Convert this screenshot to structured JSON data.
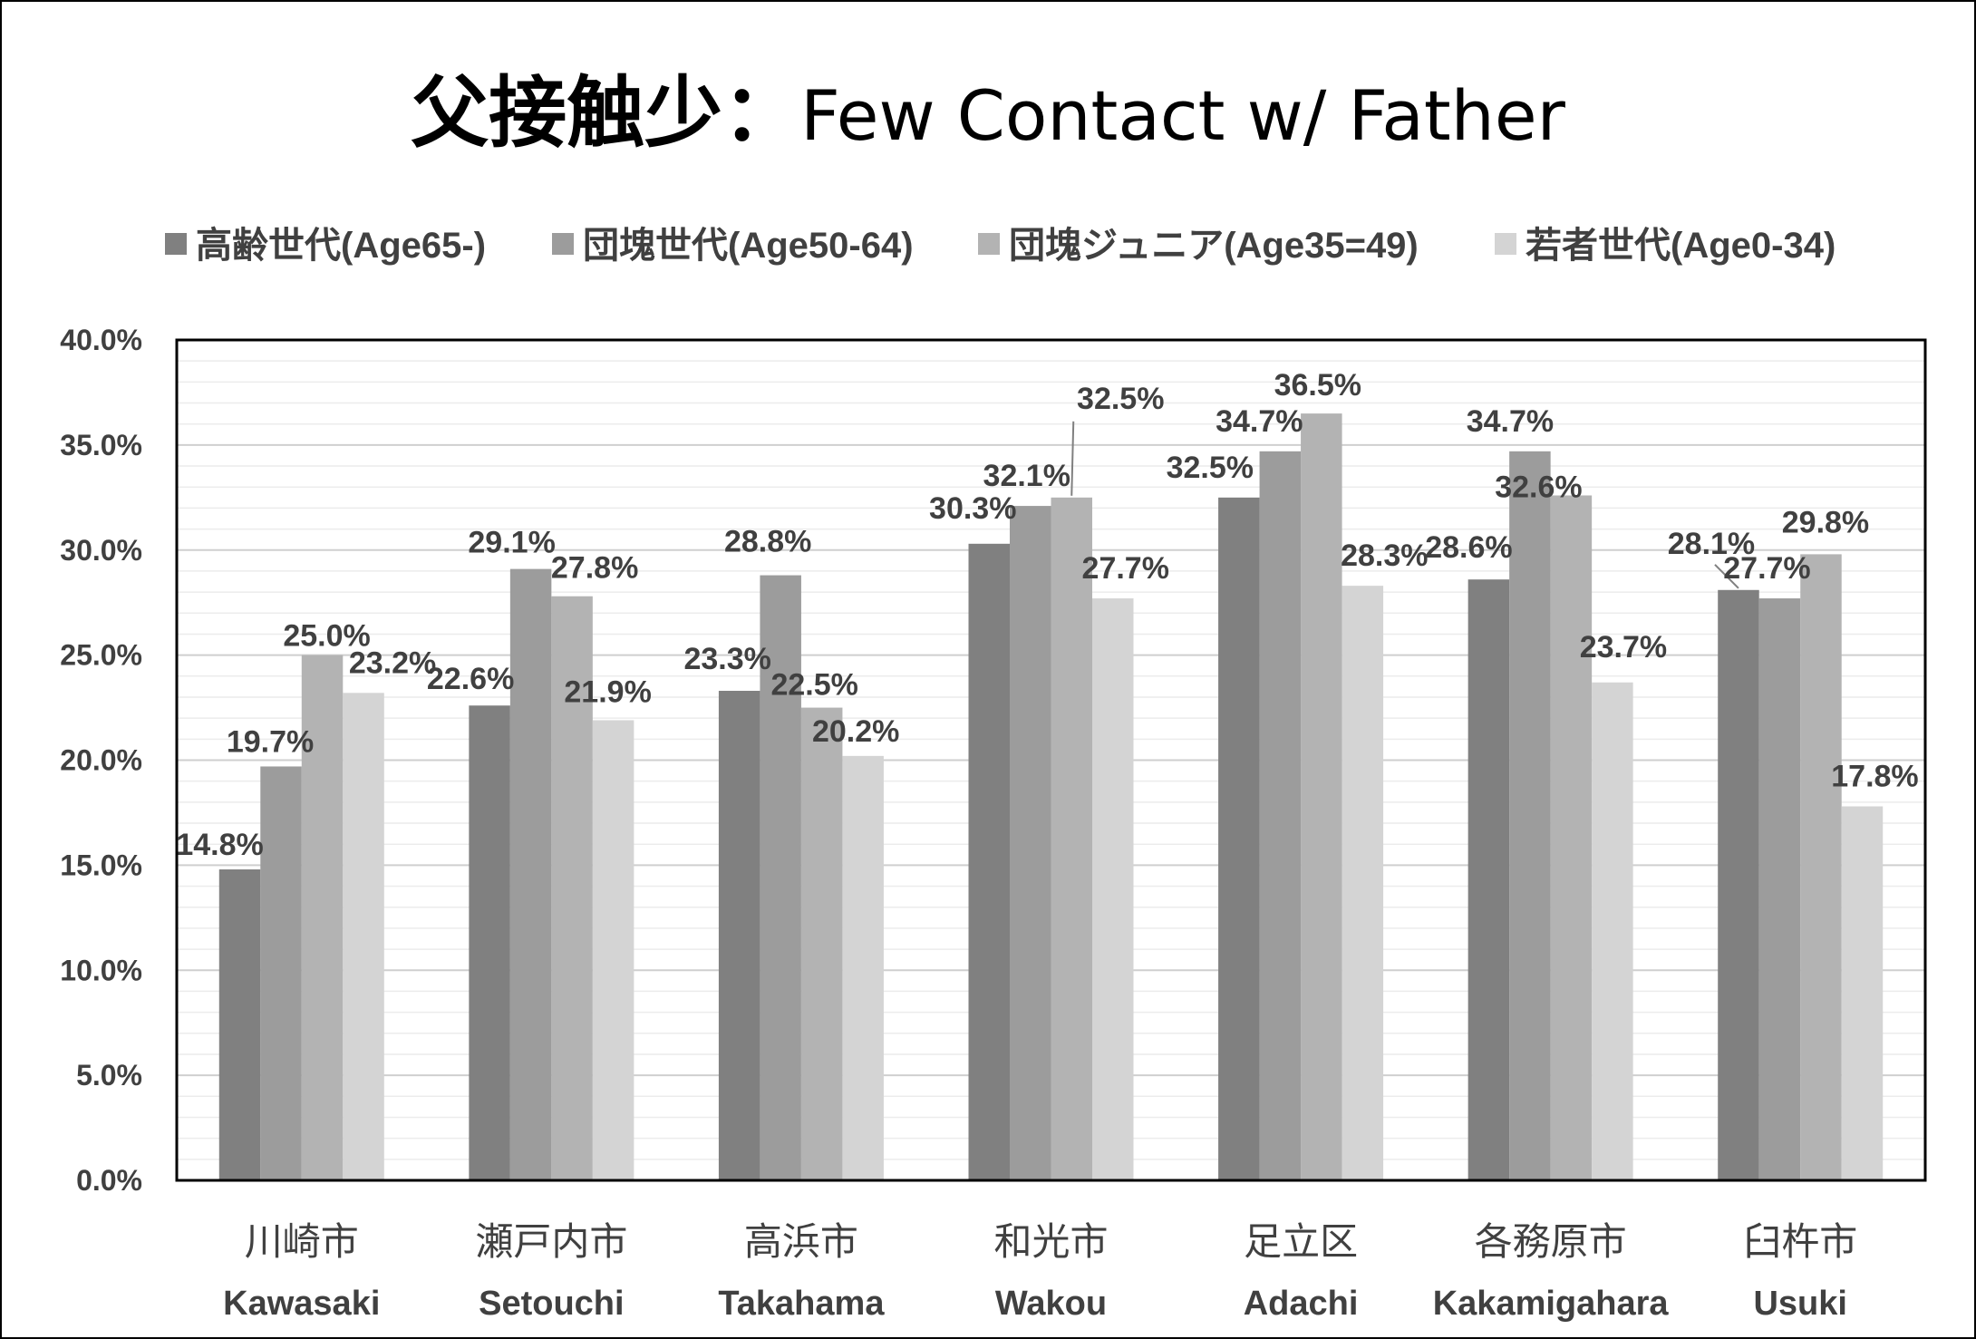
{
  "chart_data": {
    "type": "bar",
    "title_jp": "父接触少",
    "title_sep": "：",
    "title_en": "Few Contact w/ Father",
    "categories": [
      "川崎市",
      "瀬戸内市",
      "高浜市",
      "和光市",
      "足立区",
      "各務原市",
      "臼杵市"
    ],
    "categories_en": [
      "Kawasaki",
      "Setouchi",
      "Takahama",
      "Wakou",
      "Adachi",
      "Kakamigahara",
      "Usuki"
    ],
    "series": [
      {
        "name": "高齢世代(Age65-)",
        "color": "#808080",
        "values": [
          14.8,
          22.6,
          23.3,
          30.3,
          32.5,
          28.6,
          28.1
        ],
        "labels": [
          "14.8%",
          "22.6%",
          "23.3%",
          "30.3%",
          "32.5%",
          "28.6%",
          "28.1%"
        ]
      },
      {
        "name": "団塊世代(Age50-64)",
        "color": "#9c9c9c",
        "values": [
          19.7,
          29.1,
          28.8,
          32.1,
          34.7,
          34.7,
          27.7
        ],
        "labels": [
          "19.7%",
          "29.1%",
          "28.8%",
          "32.1%",
          "34.7%",
          "34.7%",
          "27.7%"
        ]
      },
      {
        "name": "団塊ジュニア(Age35=49)",
        "color": "#b3b3b3",
        "values": [
          25.0,
          27.8,
          22.5,
          32.5,
          36.5,
          32.6,
          29.8
        ],
        "labels": [
          "25.0%",
          "27.8%",
          "22.5%",
          "32.5%",
          "36.5%",
          "32.6%",
          "29.8%"
        ]
      },
      {
        "name": "若者世代(Age0-34)",
        "color": "#d4d4d4",
        "values": [
          23.2,
          21.9,
          20.2,
          27.7,
          28.3,
          23.7,
          17.8
        ],
        "labels": [
          "23.2%",
          "21.9%",
          "20.2%",
          "27.7%",
          "28.3%",
          "23.7%",
          "17.8%"
        ]
      }
    ],
    "ylim": [
      0,
      40
    ],
    "yticks": [
      "0.0%",
      "5.0%",
      "10.0%",
      "15.0%",
      "20.0%",
      "25.0%",
      "30.0%",
      "35.0%",
      "40.0%"
    ],
    "grid": true,
    "legend_position": "top"
  }
}
